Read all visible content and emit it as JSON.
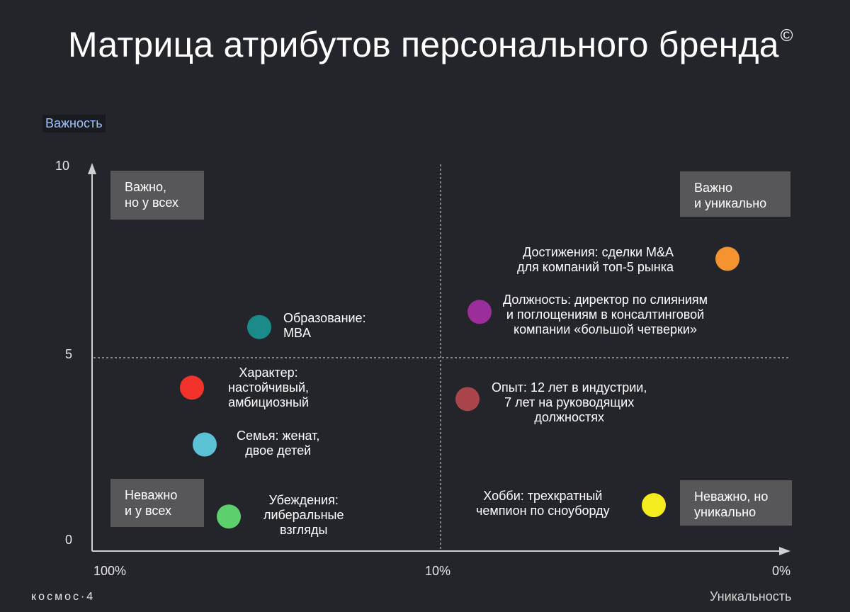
{
  "title": "Матрица атрибутов персонального бренда",
  "title_mark": "©",
  "logo": "космос·4",
  "chart_data": {
    "type": "scatter",
    "ylabel": "Важность",
    "xlabel": "Уникальность",
    "ylim": [
      0,
      10
    ],
    "y_ticks": [
      "10",
      "5",
      "0"
    ],
    "x_ticks": [
      "100%",
      "10%",
      "0%"
    ],
    "grid": "dashed midlines at x=10%, y=5",
    "quadrants": [
      {
        "label": "Важно,\nно у всех",
        "position": "top-left"
      },
      {
        "label": "Важно\nи уникально",
        "position": "top-right"
      },
      {
        "label": "Неважно\nи у всех",
        "position": "bottom-left"
      },
      {
        "label": "Неважно, но\nуникально",
        "position": "bottom-right"
      }
    ],
    "points": [
      {
        "label": "Достижения: сделки M&A\nдля компаний топ-5 рынка",
        "y": 7.6,
        "color": "#f59331"
      },
      {
        "label": "Должность: директор по слияниям\nи поглощениям в консалтинговой\nкомпании «большой четверки»",
        "y": 6.2,
        "color": "#9b2e9a"
      },
      {
        "label": "Образование:\nMBA",
        "y": 5.8,
        "color": "#1b8b8a"
      },
      {
        "label": "Характер:\nнастойчивый,\nамбициозный",
        "y": 4.2,
        "color": "#f2322b"
      },
      {
        "label": "Опыт: 12 лет в индустрии,\n7 лет на руководящих\nдолжностях",
        "y": 3.9,
        "color": "#a9454a"
      },
      {
        "label": "Семья: женат,\nдвое детей",
        "y": 2.7,
        "color": "#5bc2d6"
      },
      {
        "label": "Убеждения:\nлиберальные\nвзгляды",
        "y": 0.8,
        "color": "#5cd06d"
      },
      {
        "label": "Хобби: трехкратный\nчемпион по сноуборду",
        "y": 1.1,
        "color": "#f5ec1e"
      }
    ]
  }
}
